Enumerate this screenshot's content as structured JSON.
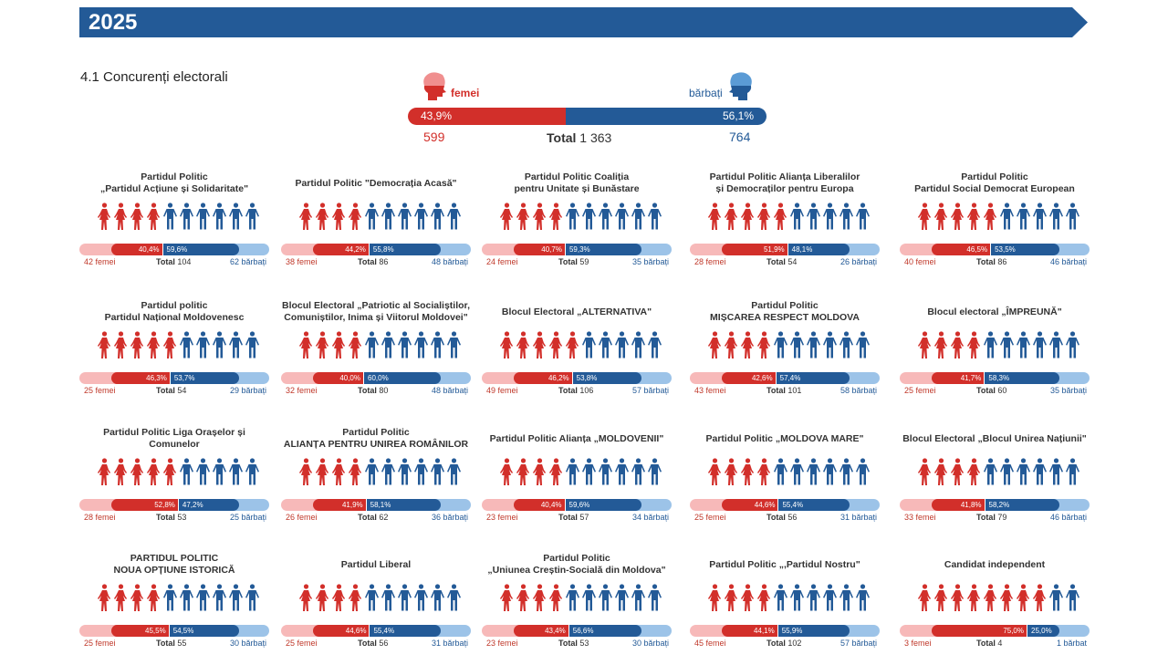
{
  "header": {
    "year": "2025"
  },
  "section_title": "4.1 Concurenți electorali",
  "summary": {
    "women_label": "femei",
    "men_label": "bărbați",
    "women_pct": "43,9%",
    "men_pct": "56,1%",
    "women_pct_value": 43.9,
    "women_count": "599",
    "men_count": "764",
    "total_label": "Total",
    "total_value": "1 363"
  },
  "colors": {
    "women": "#d22f2a",
    "men": "#235a97",
    "women_light": "#f7b9b9",
    "men_light": "#9cc3e8"
  },
  "chart_data": {
    "type": "bar",
    "title": "4.1 Concurenți electorali",
    "series": [
      {
        "name": "femei"
      },
      {
        "name": "bărbați"
      }
    ],
    "items": [
      {
        "title": "Partidul Politic\n„Partidul Acțiune și Solidaritate\"",
        "wp": "40,4%",
        "mp": "59,6%",
        "w": "42 femei",
        "m": "62 bărbați",
        "t": "104",
        "icons_women": 4
      },
      {
        "title": "Partidul Politic \"Democrația Acasă\"",
        "wp": "44,2%",
        "mp": "55,8%",
        "w": "38 femei",
        "m": "48 bărbați",
        "t": "86",
        "icons_women": 4
      },
      {
        "title": "Partidul Politic Coaliția\npentru Unitate și Bunăstare",
        "wp": "40,7%",
        "mp": "59,3%",
        "w": "24 femei",
        "m": "35 bărbați",
        "t": "59",
        "icons_women": 4
      },
      {
        "title": "Partidul Politic Alianța Liberalilor\nși Democraților pentru Europa",
        "wp": "51,9%",
        "mp": "48,1%",
        "w": "28 femei",
        "m": "26 bărbați",
        "t": "54",
        "icons_women": 5
      },
      {
        "title": "Partidul Politic\nPartidul Social Democrat European",
        "wp": "46,5%",
        "mp": "53,5%",
        "w": "40 femei",
        "m": "46 bărbați",
        "t": "86",
        "icons_women": 5
      },
      {
        "title": "Partidul politic\nPartidul Național Moldovenesc",
        "wp": "46,3%",
        "mp": "53,7%",
        "w": "25 femei",
        "m": "29 bărbați",
        "t": "54",
        "icons_women": 5
      },
      {
        "title": "Blocul Electoral „Patriotic al Socialiștilor,\nComuniștilor, Inima și Viitorul Moldovei\"",
        "wp": "40,0%",
        "mp": "60,0%",
        "w": "32 femei",
        "m": "48 bărbați",
        "t": "80",
        "icons_women": 4
      },
      {
        "title": "Blocul Electoral „ALTERNATIVA\"",
        "wp": "46,2%",
        "mp": "53,8%",
        "w": "49 femei",
        "m": "57 bărbați",
        "t": "106",
        "icons_women": 5
      },
      {
        "title": "Partidul Politic\nMIȘCAREA RESPECT MOLDOVA",
        "wp": "42,6%",
        "mp": "57,4%",
        "w": "43 femei",
        "m": "58 bărbați",
        "t": "101",
        "icons_women": 4
      },
      {
        "title": "Blocul electoral „ÎMPREUNĂ\"",
        "wp": "41,7%",
        "mp": "58,3%",
        "w": "25 femei",
        "m": "35 bărbați",
        "t": "60",
        "icons_women": 4
      },
      {
        "title": "Partidul Politic Liga Orașelor și Comunelor",
        "wp": "52,8%",
        "mp": "47,2%",
        "w": "28 femei",
        "m": "25 bărbați",
        "t": "53",
        "icons_women": 5
      },
      {
        "title": "Partidul Politic\nALIANȚA PENTRU UNIREA ROMÂNILOR",
        "wp": "41,9%",
        "mp": "58,1%",
        "w": "26 femei",
        "m": "36 bărbați",
        "t": "62",
        "icons_women": 4
      },
      {
        "title": "Partidul Politic Alianța „MOLDOVENII\"",
        "wp": "40,4%",
        "mp": "59,6%",
        "w": "23 femei",
        "m": "34 bărbați",
        "t": "57",
        "icons_women": 4
      },
      {
        "title": "Partidul Politic „MOLDOVA MARE\"",
        "wp": "44,6%",
        "mp": "55,4%",
        "w": "25 femei",
        "m": "31 bărbați",
        "t": "56",
        "icons_women": 4
      },
      {
        "title": "Blocul Electoral „Blocul Unirea Națiunii\"",
        "wp": "41,8%",
        "mp": "58,2%",
        "w": "33 femei",
        "m": "46 bărbați",
        "t": "79",
        "icons_women": 4
      },
      {
        "title": "PARTIDUL POLITIC\nNOUA OPȚIUNE ISTORICĂ",
        "wp": "45,5%",
        "mp": "54,5%",
        "w": "25 femei",
        "m": "30 bărbați",
        "t": "55",
        "icons_women": 4
      },
      {
        "title": "Partidul Liberal",
        "wp": "44,6%",
        "mp": "55,4%",
        "w": "25 femei",
        "m": "31 bărbați",
        "t": "56",
        "icons_women": 4
      },
      {
        "title": "Partidul Politic\n„Uniunea Creștin-Socială din Moldova\"",
        "wp": "43,4%",
        "mp": "56,6%",
        "w": "23 femei",
        "m": "30 bărbați",
        "t": "53",
        "icons_women": 4
      },
      {
        "title": "Partidul Politic „,Partidul Nostru\"",
        "wp": "44,1%",
        "mp": "55,9%",
        "w": "45 femei",
        "m": "57 bărbați",
        "t": "102",
        "icons_women": 4
      },
      {
        "title": "Candidat independent",
        "wp": "75,0%",
        "mp": "25,0%",
        "w": "3 femei",
        "m": "1 bărbat",
        "t": "4",
        "icons_women": 8
      }
    ],
    "total_label": "Total"
  }
}
